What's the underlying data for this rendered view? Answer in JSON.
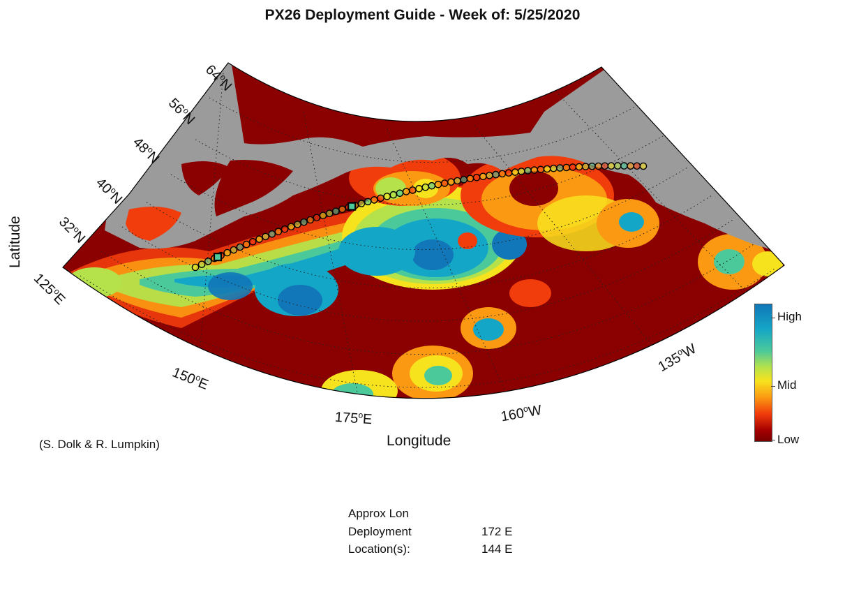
{
  "title": "PX26 Deployment Guide - Week of: 5/25/2020",
  "axis": {
    "xlabel": "Longitude",
    "ylabel": "Latitude",
    "lat_ticks": [
      "64",
      "56",
      "48",
      "40",
      "32"
    ],
    "lat_suffix": "N",
    "lon_ticks": [
      {
        "deg": "125",
        "hem": "E"
      },
      {
        "deg": "150",
        "hem": "E"
      },
      {
        "deg": "175",
        "hem": "E"
      },
      {
        "deg": "160",
        "hem": "W"
      },
      {
        "deg": "135",
        "hem": "W"
      }
    ],
    "degree_mark": "o"
  },
  "credit": "(S. Dolk & R. Lumpkin)",
  "colorbar": {
    "high": "High",
    "mid": "Mid",
    "low": "Low",
    "colors": [
      "#1177b8",
      "#14a6c6",
      "#4cc99b",
      "#b5e24a",
      "#f7e21e",
      "#fb9a12",
      "#f13c0c",
      "#a50000"
    ]
  },
  "deployment": {
    "heading": "Approx Lon",
    "label_line1": "Deployment",
    "label_line2": "Location(s):",
    "locations": [
      "172 E",
      "144 E"
    ]
  },
  "colors": {
    "land": "#9b9b9b",
    "ocean_low": "#8b0000",
    "track": "#000000"
  }
}
